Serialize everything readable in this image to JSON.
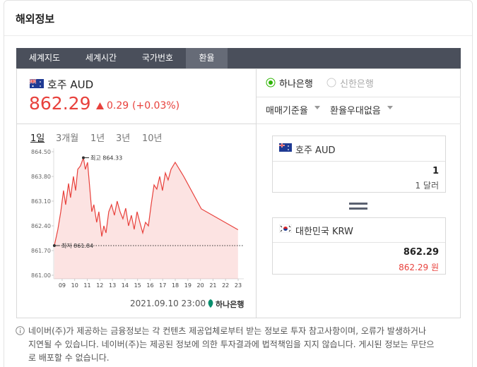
{
  "header": {
    "title": "해외정보"
  },
  "tabs": [
    "세계지도",
    "세계시간",
    "국가번호",
    "환율"
  ],
  "currency": {
    "name": "호주 AUD",
    "rate": "862.29",
    "change": "0.29",
    "change_pct": "(+0.03%)"
  },
  "periods": [
    "1일",
    "3개월",
    "1년",
    "3년",
    "10년"
  ],
  "chart_data": {
    "type": "line",
    "color": "#e8413c",
    "x": [
      8.38,
      8.66,
      8.89,
      9.11,
      9.28,
      9.51,
      9.67,
      9.9,
      10.07,
      10.24,
      10.46,
      10.69,
      10.85,
      11.02,
      11.19,
      11.36,
      11.52,
      11.75,
      11.92,
      12.15,
      12.32,
      12.49,
      12.71,
      12.93,
      13.16,
      13.38,
      13.61,
      13.83,
      14.06,
      14.28,
      14.51,
      14.73,
      14.96,
      15.18,
      15.41,
      15.63,
      15.86,
      16.08,
      16.31,
      16.53,
      16.76,
      16.98,
      17.21,
      17.43,
      17.66,
      17.99,
      18.67,
      20.07,
      22.99
    ],
    "values": [
      861.84,
      862.3,
      862.8,
      863.4,
      863.0,
      863.6,
      863.2,
      863.8,
      863.4,
      864.0,
      864.1,
      864.33,
      864.0,
      864.2,
      863.5,
      862.8,
      863.0,
      862.5,
      862.8,
      862.1,
      862.4,
      862.2,
      862.8,
      863.0,
      862.7,
      863.1,
      862.8,
      862.6,
      862.9,
      862.4,
      862.7,
      862.3,
      862.8,
      862.5,
      862.2,
      862.5,
      862.4,
      863.0,
      863.56,
      863.44,
      863.8,
      863.4,
      863.9,
      863.7,
      864.0,
      864.2,
      863.8,
      862.88,
      862.29
    ],
    "xlim": [
      8.33,
      23.45
    ],
    "ylim": [
      860.9,
      864.6
    ],
    "xticks": [
      {
        "value": 9,
        "label": "09"
      },
      10,
      11,
      12,
      13,
      14,
      15,
      16,
      17,
      18,
      19,
      20,
      21,
      22,
      23
    ],
    "yticks": [
      {
        "value": 861.0,
        "label": "861.00"
      },
      {
        "value": 861.7,
        "label": "861.70"
      },
      {
        "value": 862.4,
        "label": "862.40"
      },
      {
        "value": 863.1,
        "label": "863.10"
      },
      {
        "value": 863.8,
        "label": "863.80"
      },
      {
        "value": 864.5,
        "label": "864.50"
      }
    ],
    "max_label": "최고 864.33",
    "min_label": "최저 861.84"
  },
  "timestamp": "2021.09.10 23:00",
  "source": "하나은행",
  "banks": [
    "하나은행",
    "신한은행"
  ],
  "options": [
    "매매기준율",
    "환율우대없음"
  ],
  "converter": {
    "from": {
      "name": "호주 AUD",
      "amount": "1",
      "unit_amount": "1 달러"
    },
    "to": {
      "name": "대한민국 KRW",
      "amount": "862.29",
      "unit_amount": "862.29 원"
    }
  },
  "notice": [
    "네이버(주)가 제공하는 금융정보는 각 컨텐츠 제공업체로부터 받는 정보로 투자 참고사항이며, 오류가 발생하거나",
    "지연될 수 있습니다. 네이버(주)는 제공된 정보에 의한 투자결과에 법적책임을 지지 않습니다. 게시된 정보는 무단으",
    "로 배포할 수 없습니다."
  ]
}
